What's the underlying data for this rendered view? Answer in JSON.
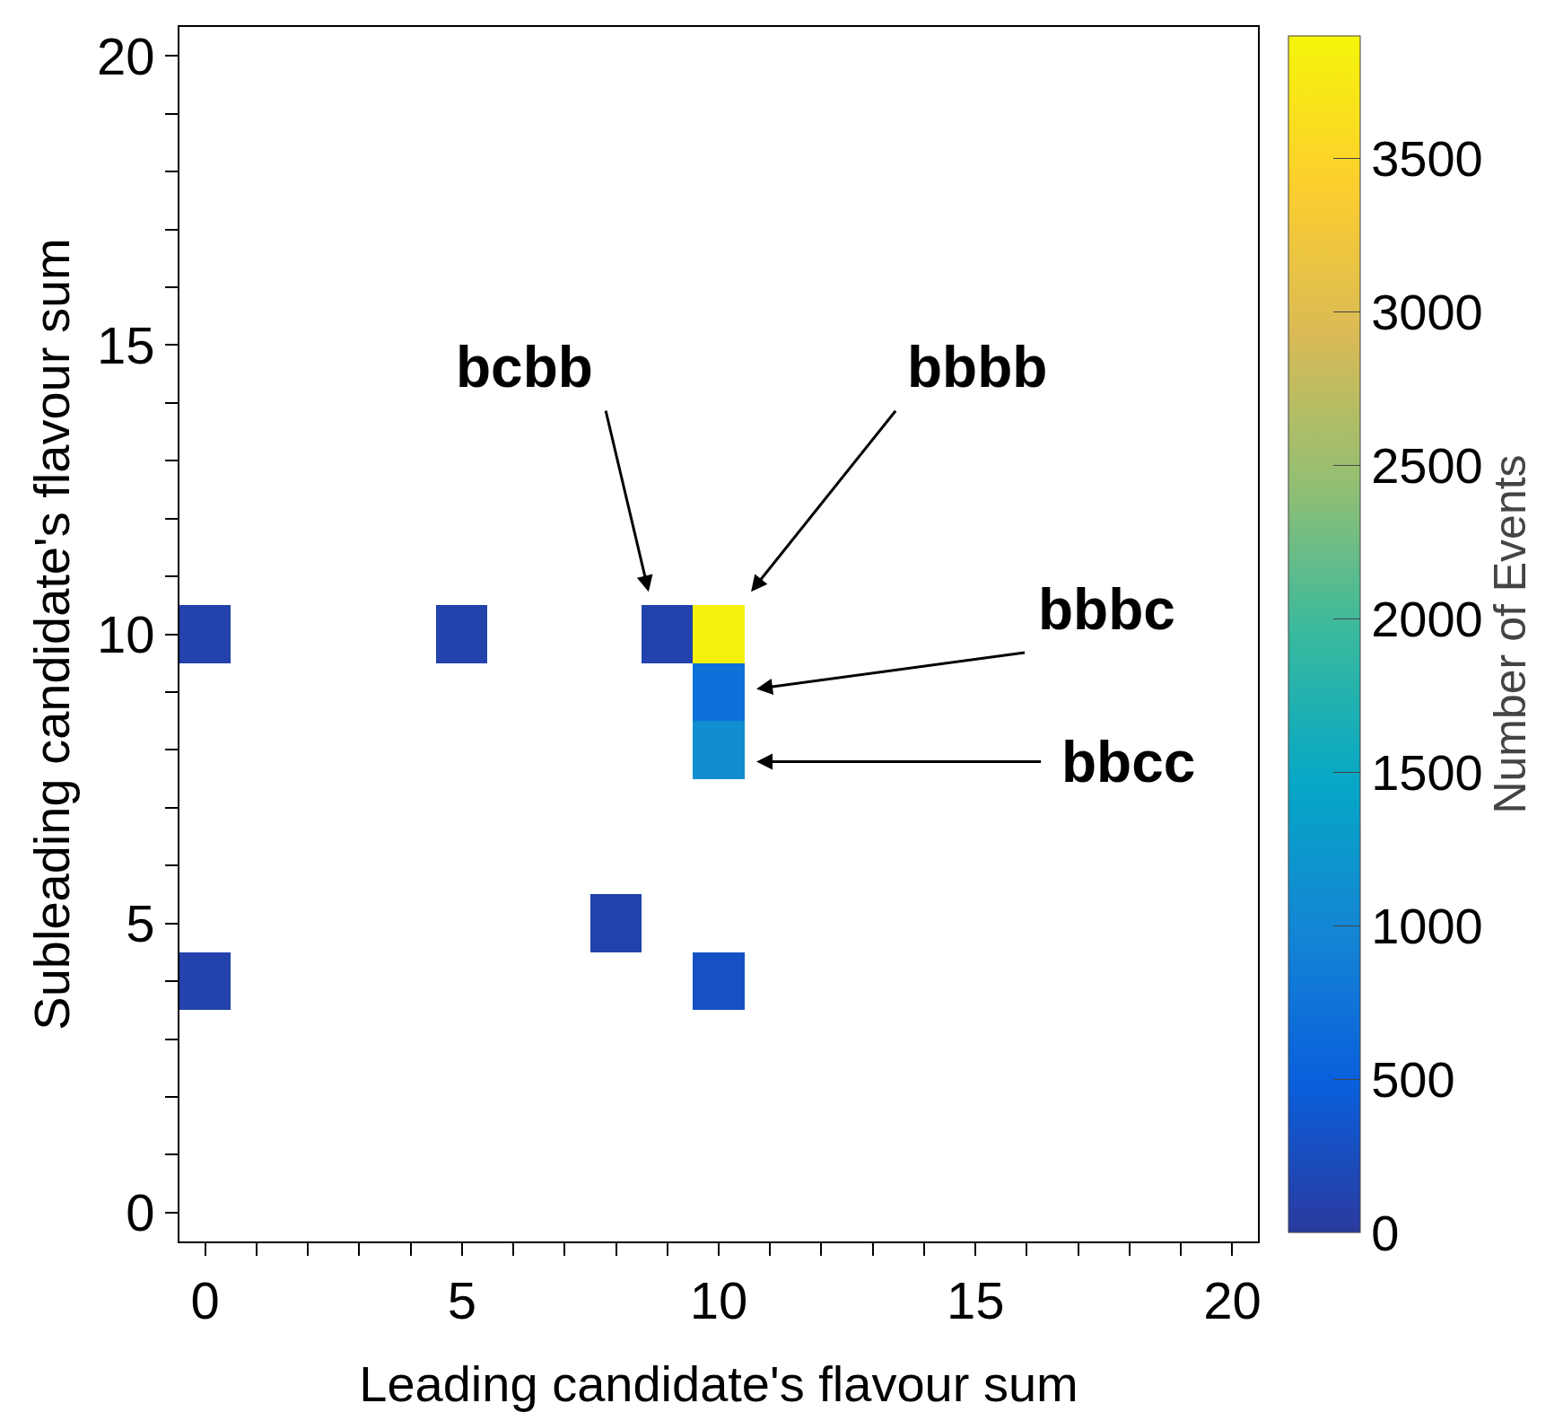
{
  "chart_data": {
    "type": "heatmap",
    "xlabel": "Leading candidate's flavour sum",
    "ylabel": "Subleading candidate's flavour sum",
    "clabel": "Number of Events",
    "x": [
      0,
      1,
      2,
      3,
      4,
      5,
      6,
      7,
      8,
      9,
      10,
      11,
      12,
      13,
      14,
      15,
      16,
      17,
      18,
      19,
      20
    ],
    "y": [
      10,
      9,
      8,
      5,
      4
    ],
    "cells": [
      [
        100,
        null,
        null,
        null,
        null,
        100,
        null,
        null,
        null,
        120,
        3850,
        null,
        null,
        null,
        null,
        null,
        null,
        null,
        null,
        null,
        null
      ],
      [
        null,
        null,
        null,
        null,
        null,
        null,
        null,
        null,
        null,
        null,
        700,
        null,
        null,
        null,
        null,
        null,
        null,
        null,
        null,
        null,
        null
      ],
      [
        null,
        null,
        null,
        null,
        null,
        null,
        null,
        null,
        null,
        null,
        1100,
        null,
        null,
        null,
        null,
        null,
        null,
        null,
        null,
        null,
        null
      ],
      [
        null,
        null,
        null,
        null,
        null,
        null,
        null,
        null,
        100,
        null,
        null,
        null,
        null,
        null,
        null,
        null,
        null,
        null,
        null,
        null,
        null
      ],
      [
        100,
        null,
        null,
        null,
        null,
        null,
        null,
        null,
        null,
        null,
        300,
        null,
        null,
        null,
        null,
        null,
        null,
        null,
        null,
        null,
        null
      ]
    ],
    "xlim": [
      -0.5,
      20.5
    ],
    "ylim": [
      -0.5,
      20.5
    ],
    "xticks": [
      0,
      {
        "value": 1,
        "label": null
      },
      {
        "value": 2,
        "label": null
      },
      {
        "value": 3,
        "label": null
      },
      {
        "value": 4,
        "label": null
      },
      5,
      {
        "value": 6,
        "label": null
      },
      {
        "value": 7,
        "label": null
      },
      {
        "value": 8,
        "label": null
      },
      {
        "value": 9,
        "label": null
      },
      10,
      {
        "value": 11,
        "label": null
      },
      {
        "value": 12,
        "label": null
      },
      {
        "value": 13,
        "label": null
      },
      {
        "value": 14,
        "label": null
      },
      15,
      {
        "value": 16,
        "label": null
      },
      {
        "value": 17,
        "label": null
      },
      {
        "value": 18,
        "label": null
      },
      {
        "value": 19,
        "label": null
      },
      20
    ],
    "yticks": [
      0,
      {
        "value": 1,
        "label": null
      },
      {
        "value": 2,
        "label": null
      },
      {
        "value": 3,
        "label": null
      },
      {
        "value": 4,
        "label": null
      },
      5,
      {
        "value": 6,
        "label": null
      },
      {
        "value": 7,
        "label": null
      },
      {
        "value": 8,
        "label": null
      },
      {
        "value": 9,
        "label": null
      },
      10,
      {
        "value": 11,
        "label": null
      },
      {
        "value": 12,
        "label": null
      },
      {
        "value": 13,
        "label": null
      },
      {
        "value": 14,
        "label": null
      },
      15,
      {
        "value": 16,
        "label": null
      },
      {
        "value": 17,
        "label": null
      },
      {
        "value": 18,
        "label": null
      },
      {
        "value": 19,
        "label": null
      },
      20
    ],
    "clim": [
      0,
      3900
    ],
    "cticks": [
      0,
      500,
      1000,
      1500,
      2000,
      2500,
      3000,
      3500
    ],
    "annotations": [
      "bcbb",
      "bbbb",
      "bbbc",
      "bbcc"
    ]
  }
}
